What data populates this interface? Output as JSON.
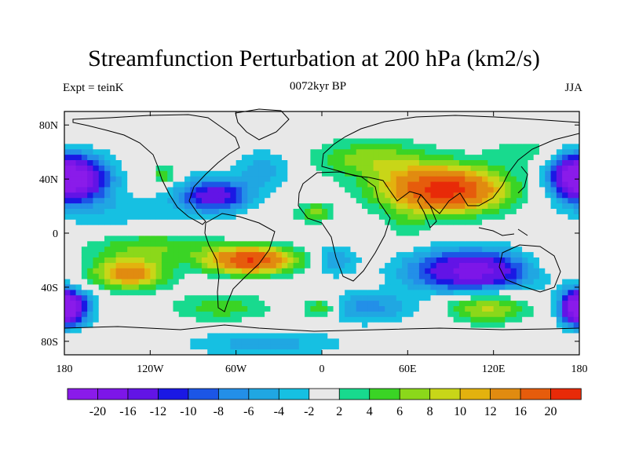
{
  "title": "Streamfunction Perturbation at 200 hPa (km2/s)",
  "left_label": "Expt = teinK",
  "center_label": "0072kyr BP",
  "right_label": "JJA",
  "chart_data": {
    "type": "heatmap",
    "projection": "cylindrical-equidistant",
    "title": "Streamfunction Perturbation at 200 hPa (km2/s)",
    "xlabel": "",
    "ylabel": "",
    "xlim": [
      -180,
      180
    ],
    "ylim": [
      -90,
      90
    ],
    "x_ticks": [
      {
        "value": -180,
        "label": "180"
      },
      {
        "value": -120,
        "label": "120W"
      },
      {
        "value": -60,
        "label": "60W"
      },
      {
        "value": 0,
        "label": "0"
      },
      {
        "value": 60,
        "label": "60E"
      },
      {
        "value": 120,
        "label": "120E"
      },
      {
        "value": 180,
        "label": "180"
      }
    ],
    "y_ticks": [
      {
        "value": 80,
        "label": "80N"
      },
      {
        "value": 40,
        "label": "40N"
      },
      {
        "value": 0,
        "label": "0"
      },
      {
        "value": -40,
        "label": "40S"
      },
      {
        "value": -80,
        "label": "80S"
      }
    ],
    "contour_levels": [
      -20,
      -16,
      -12,
      -10,
      -8,
      -6,
      -4,
      -2,
      2,
      4,
      6,
      8,
      10,
      12,
      16,
      20
    ],
    "colorbar_colors": [
      "#8a1bea",
      "#7d16e8",
      "#6214e6",
      "#1a18e4",
      "#1c56e6",
      "#238fe8",
      "#20a7e2",
      "#16c0e2",
      "#e8e8e8",
      "#18da8e",
      "#3ad425",
      "#8bd81a",
      "#c8d618",
      "#e3b20e",
      "#e18b10",
      "#e65c0c",
      "#e82a08"
    ],
    "colorbar_labels": [
      "-20",
      "-16",
      "-12",
      "-10",
      "-8",
      "-6",
      "-4",
      "-2",
      "2",
      "4",
      "6",
      "8",
      "10",
      "12",
      "16",
      "20"
    ],
    "features": [
      {
        "lon": 85,
        "lat": 32,
        "value": 22,
        "sx": 30,
        "sy": 12
      },
      {
        "lon": 35,
        "lat": 55,
        "value": 7,
        "sx": 28,
        "sy": 10
      },
      {
        "lon": 140,
        "lat": 60,
        "value": 3,
        "sx": 18,
        "sy": 8
      },
      {
        "lon": -110,
        "lat": 42,
        "value": 6,
        "sx": 6,
        "sy": 5
      },
      {
        "lon": -75,
        "lat": 28,
        "value": -14,
        "sx": 18,
        "sy": 9
      },
      {
        "lon": -170,
        "lat": 40,
        "value": -18,
        "sx": 16,
        "sy": 12
      },
      {
        "lon": 175,
        "lat": 42,
        "value": -14,
        "sx": 12,
        "sy": 11
      },
      {
        "lon": -40,
        "lat": 48,
        "value": -5,
        "sx": 14,
        "sy": 10
      },
      {
        "lon": -140,
        "lat": 15,
        "value": -3,
        "sx": 35,
        "sy": 10
      },
      {
        "lon": -35,
        "lat": 10,
        "value": 2,
        "sx": 12,
        "sy": 6
      },
      {
        "lon": -5,
        "lat": 15,
        "value": 7,
        "sx": 8,
        "sy": 5
      },
      {
        "lon": -50,
        "lat": -20,
        "value": 20,
        "sx": 22,
        "sy": 7
      },
      {
        "lon": -135,
        "lat": -30,
        "value": 14,
        "sx": 18,
        "sy": 8
      },
      {
        "lon": -120,
        "lat": -10,
        "value": 6,
        "sx": 30,
        "sy": 8
      },
      {
        "lon": 10,
        "lat": -20,
        "value": -6,
        "sx": 10,
        "sy": 8
      },
      {
        "lon": 105,
        "lat": -28,
        "value": -18,
        "sx": 30,
        "sy": 11
      },
      {
        "lon": 30,
        "lat": -55,
        "value": -7,
        "sx": 25,
        "sy": 8
      },
      {
        "lon": -70,
        "lat": -55,
        "value": 5,
        "sx": 25,
        "sy": 8
      },
      {
        "lon": 0,
        "lat": -55,
        "value": 8,
        "sx": 10,
        "sy": 6
      },
      {
        "lon": 115,
        "lat": -55,
        "value": 9,
        "sx": 20,
        "sy": 8
      },
      {
        "lon": -175,
        "lat": -55,
        "value": -14,
        "sx": 10,
        "sy": 9
      },
      {
        "lon": 178,
        "lat": -55,
        "value": -16,
        "sx": 8,
        "sy": 9
      },
      {
        "lon": -40,
        "lat": -82,
        "value": -5,
        "sx": 40,
        "sy": 7
      },
      {
        "lon": 160,
        "lat": -20,
        "value": 3,
        "sx": 15,
        "sy": 10
      },
      {
        "lon": 60,
        "lat": 5,
        "value": 3,
        "sx": 10,
        "sy": 8
      }
    ]
  }
}
